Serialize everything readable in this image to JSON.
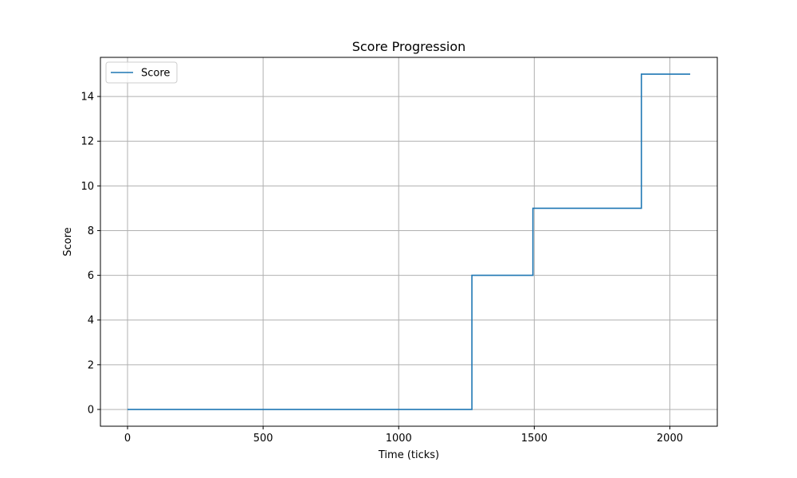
{
  "chart_data": {
    "type": "line",
    "drawstyle": "steps-post",
    "title": "Score Progression",
    "xlabel": "Time (ticks)",
    "ylabel": "Score",
    "xlim": [
      -100,
      2175
    ],
    "ylim": [
      -0.75,
      15.75
    ],
    "xticks": [
      0,
      500,
      1000,
      1500,
      2000
    ],
    "yticks": [
      0,
      2,
      4,
      6,
      8,
      10,
      12,
      14
    ],
    "grid": true,
    "legend": {
      "location": "upper-left",
      "entries": [
        "Score"
      ]
    },
    "series": [
      {
        "name": "Score",
        "color": "#1f77b4",
        "x": [
          0,
          1270,
          1495,
          1895,
          2075
        ],
        "y": [
          0,
          6,
          9,
          15,
          15
        ]
      }
    ]
  }
}
